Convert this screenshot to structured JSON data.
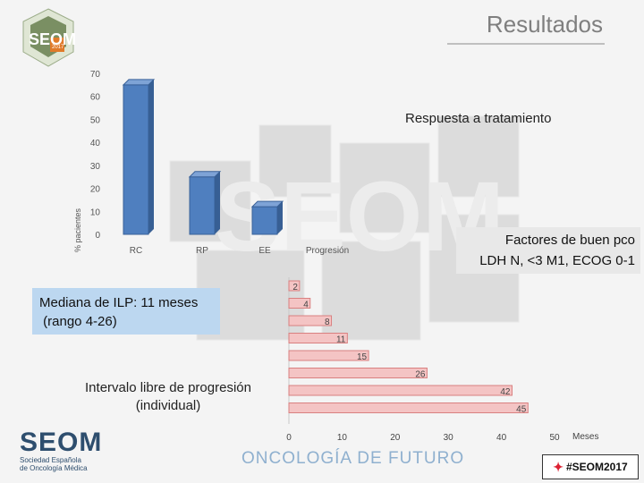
{
  "slide": {
    "title": "Resultados",
    "logo_text": "SEOM",
    "logo_year": "2017",
    "footer": {
      "org_name": "SEOM",
      "org_line1": "Sociedad Española",
      "org_line2": "de Oncología Médica",
      "tagline": "ONCOLOGÍA DE FUTURO",
      "hashtag": "#SEOM2017"
    }
  },
  "colors": {
    "bar_blue": "#4f7fbf",
    "bar_pink": "#f4c4c4",
    "bar_pink_border": "#d98080",
    "callout_blue": "#bcd7f0"
  },
  "annotations": {
    "median_line1": "Mediana de ILP: 11 meses",
    "median_line2": " (rango 4-26)",
    "factors_line1": "Factores de buen pco",
    "factors_line2": "LDH N, <3 M1, ECOG 0-1",
    "pfs_label": "Intervalo libre de progresión (individual)"
  },
  "chart_data": [
    {
      "type": "bar",
      "title": "Respuesta a tratamiento",
      "ylabel": "% pacientes",
      "categories": [
        "RC",
        "RP",
        "EE",
        "Progresión"
      ],
      "values": [
        65,
        25,
        12,
        0
      ],
      "ylim": [
        0,
        70
      ],
      "yticks": [
        0,
        10,
        20,
        30,
        40,
        50,
        60,
        70
      ]
    },
    {
      "type": "bar",
      "orientation": "horizontal",
      "values": [
        2,
        4,
        8,
        11,
        15,
        26,
        42,
        45
      ],
      "xlim": [
        0,
        50
      ],
      "xticks": [
        0,
        10,
        20,
        30,
        40,
        50
      ],
      "xlabel": "Meses"
    }
  ]
}
